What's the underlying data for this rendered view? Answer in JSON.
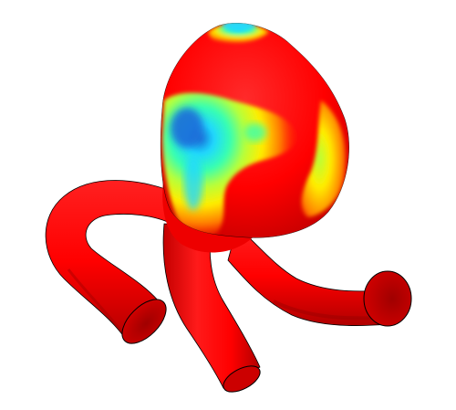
{
  "viewport": {
    "background_color": "#ffffff"
  },
  "render": {
    "subject": "aneurysm-vessel-surface",
    "colormap": [
      "#ff0000",
      "#ff7700",
      "#ffee00",
      "#b6ff3a",
      "#37ffb0",
      "#20d8ff",
      "#1b6cd8"
    ],
    "base_color": "#ff0000",
    "outline_color": "#000000"
  }
}
